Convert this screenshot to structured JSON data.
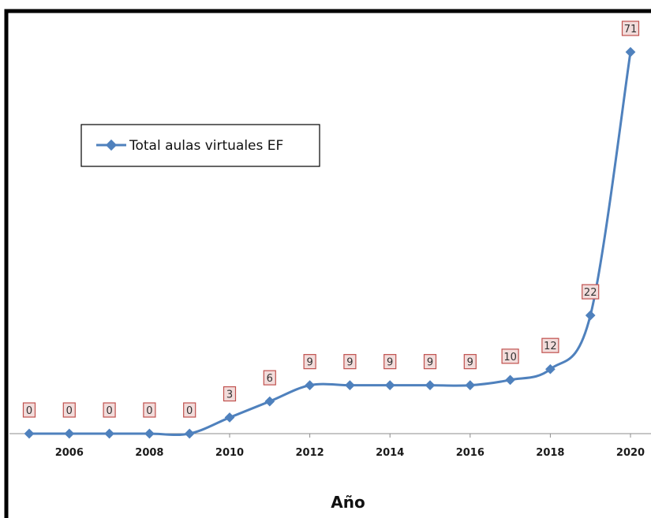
{
  "chart_data": {
    "type": "line",
    "title": "",
    "xlabel": "Año",
    "ylabel": "",
    "x": [
      2005,
      2006,
      2007,
      2008,
      2009,
      2010,
      2011,
      2012,
      2013,
      2014,
      2015,
      2016,
      2017,
      2018,
      2019,
      2020
    ],
    "x_ticks": [
      "2006",
      "2008",
      "2010",
      "2012",
      "2014",
      "2016",
      "2018",
      "2020"
    ],
    "series": [
      {
        "name": "Total aulas virtuales EF",
        "values": [
          0,
          0,
          0,
          0,
          0,
          3,
          6,
          9,
          9,
          9,
          9,
          9,
          10,
          12,
          22,
          71
        ],
        "color": "#4f81bd",
        "smooth": true
      }
    ],
    "data_labels": true,
    "data_label_color": "#c0504d",
    "data_label_fill": "#f2dcdb",
    "ylim": [
      0,
      71
    ],
    "grid": false,
    "legend": "upper-left"
  }
}
